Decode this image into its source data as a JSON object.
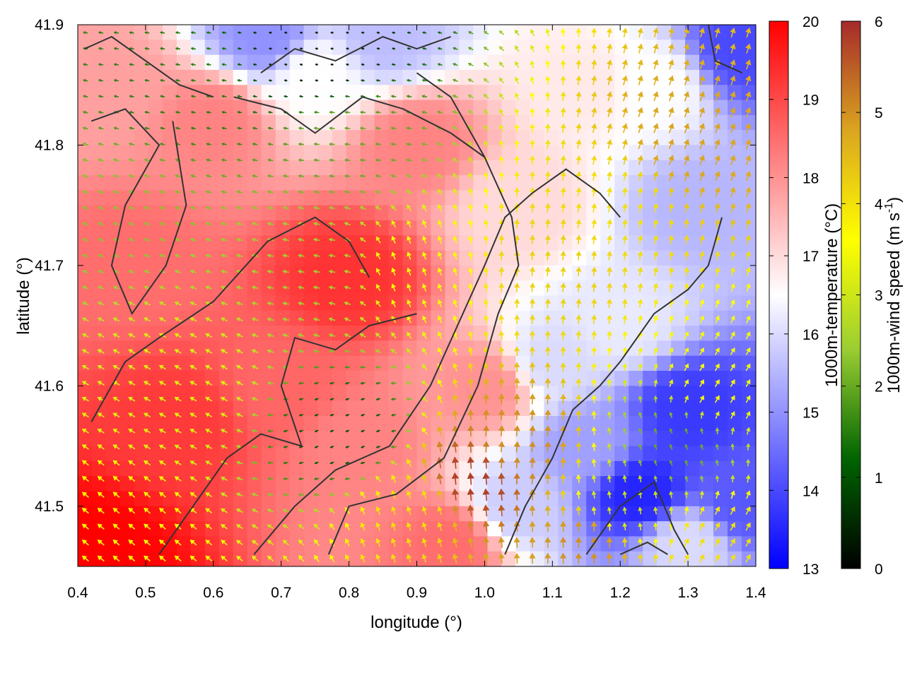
{
  "chart_data": {
    "type": "heatmap",
    "overlay": "wind-vectors-and-contours",
    "xlabel": "longitude (°)",
    "ylabel": "latitude (°)",
    "xlim": [
      0.4,
      1.4
    ],
    "ylim": [
      41.45,
      41.9
    ],
    "x_ticks": [
      "0.4",
      "0.5",
      "0.6",
      "0.7",
      "0.8",
      "0.9",
      "1.0",
      "1.1",
      "1.2",
      "1.3",
      "1.4"
    ],
    "y_ticks": [
      "41.5",
      "41.6",
      "41.7",
      "41.8",
      "41.9"
    ],
    "grid": false,
    "temperature": {
      "label": "1000m-temperature (°C)",
      "range": [
        13,
        20
      ],
      "ticks": [
        "13",
        "14",
        "15",
        "16",
        "17",
        "18",
        "19",
        "20"
      ],
      "colors": [
        "#0000ff",
        "#ffffff",
        "#ff0000"
      ]
    },
    "wind_speed": {
      "label_main": "1000m-wind speed (m s",
      "label_sup": "-1",
      "label_end": ")",
      "range": [
        0,
        6
      ],
      "ticks": [
        "0",
        "1",
        "2",
        "3",
        "4",
        "5",
        "6"
      ],
      "colors": [
        "#000000",
        "#006400",
        "#9acd32",
        "#ffff00",
        "#daa520",
        "#a52a2a"
      ]
    },
    "temperature_field": [
      {
        "lon": 0.42,
        "lat": 41.46,
        "t": 20.0
      },
      {
        "lon": 0.55,
        "lat": 41.57,
        "t": 19.2
      },
      {
        "lon": 0.48,
        "lat": 41.7,
        "t": 18.5
      },
      {
        "lon": 0.45,
        "lat": 41.85,
        "t": 17.8
      },
      {
        "lon": 0.6,
        "lat": 41.82,
        "t": 18.2
      },
      {
        "lon": 0.68,
        "lat": 41.89,
        "t": 15.0
      },
      {
        "lon": 0.85,
        "lat": 41.89,
        "t": 15.6
      },
      {
        "lon": 0.75,
        "lat": 41.86,
        "t": 16.5
      },
      {
        "lon": 0.8,
        "lat": 41.69,
        "t": 19.3
      },
      {
        "lon": 0.7,
        "lat": 41.6,
        "t": 18.6
      },
      {
        "lon": 0.82,
        "lat": 41.55,
        "t": 18.2
      },
      {
        "lon": 0.9,
        "lat": 41.8,
        "t": 18.2
      },
      {
        "lon": 1.0,
        "lat": 41.6,
        "t": 18.0
      },
      {
        "lon": 0.95,
        "lat": 41.47,
        "t": 18.5
      },
      {
        "lon": 1.05,
        "lat": 41.75,
        "t": 17.0
      },
      {
        "lon": 1.1,
        "lat": 41.62,
        "t": 16.0
      },
      {
        "lon": 1.15,
        "lat": 41.85,
        "t": 16.8
      },
      {
        "lon": 1.25,
        "lat": 41.85,
        "t": 16.5
      },
      {
        "lon": 1.32,
        "lat": 41.75,
        "t": 15.5
      },
      {
        "lon": 1.38,
        "lat": 41.88,
        "t": 14.0
      },
      {
        "lon": 1.3,
        "lat": 41.58,
        "t": 13.8
      },
      {
        "lon": 1.23,
        "lat": 41.51,
        "t": 13.5
      },
      {
        "lon": 1.38,
        "lat": 41.5,
        "t": 14.2
      },
      {
        "lon": 1.15,
        "lat": 41.55,
        "t": 15.2
      },
      {
        "lon": 1.2,
        "lat": 41.65,
        "t": 16.2
      },
      {
        "lon": 1.05,
        "lat": 41.5,
        "t": 15.8
      },
      {
        "lon": 1.3,
        "lat": 41.47,
        "t": 16.0
      }
    ],
    "wind_field": [
      {
        "lon": 0.45,
        "lat": 41.47,
        "speed": 3.6,
        "dir_deg": 140
      },
      {
        "lon": 0.55,
        "lat": 41.6,
        "speed": 3.2,
        "dir_deg": 150
      },
      {
        "lon": 0.45,
        "lat": 41.75,
        "speed": 2.3,
        "dir_deg": 165
      },
      {
        "lon": 0.55,
        "lat": 41.85,
        "speed": 1.5,
        "dir_deg": 170
      },
      {
        "lon": 0.75,
        "lat": 41.88,
        "speed": 0.4,
        "dir_deg": 170
      },
      {
        "lon": 0.8,
        "lat": 41.8,
        "speed": 2.0,
        "dir_deg": 175
      },
      {
        "lon": 0.75,
        "lat": 41.7,
        "speed": 2.5,
        "dir_deg": 170
      },
      {
        "lon": 0.8,
        "lat": 41.56,
        "speed": 1.0,
        "dir_deg": 200
      },
      {
        "lon": 0.9,
        "lat": 41.7,
        "speed": 3.5,
        "dir_deg": 110
      },
      {
        "lon": 0.9,
        "lat": 41.5,
        "speed": 4.0,
        "dir_deg": 110
      },
      {
        "lon": 0.98,
        "lat": 41.52,
        "speed": 5.8,
        "dir_deg": 95
      },
      {
        "lon": 1.05,
        "lat": 41.55,
        "speed": 5.0,
        "dir_deg": 85
      },
      {
        "lon": 1.1,
        "lat": 41.7,
        "speed": 4.2,
        "dir_deg": 85
      },
      {
        "lon": 1.2,
        "lat": 41.75,
        "speed": 4.0,
        "dir_deg": 80
      },
      {
        "lon": 1.3,
        "lat": 41.8,
        "speed": 4.8,
        "dir_deg": 70
      },
      {
        "lon": 1.35,
        "lat": 41.6,
        "speed": 3.5,
        "dir_deg": 60
      },
      {
        "lon": 1.28,
        "lat": 41.55,
        "speed": 2.0,
        "dir_deg": 110
      },
      {
        "lon": 1.2,
        "lat": 41.5,
        "speed": 3.0,
        "dir_deg": 100
      },
      {
        "lon": 1.15,
        "lat": 41.47,
        "speed": 5.0,
        "dir_deg": 90
      },
      {
        "lon": 1.35,
        "lat": 41.47,
        "speed": 4.0,
        "dir_deg": 60
      }
    ],
    "contours": [
      [
        [
          0.41,
          41.88
        ],
        [
          0.45,
          41.89
        ],
        [
          0.5,
          41.87
        ],
        [
          0.55,
          41.85
        ],
        [
          0.6,
          41.84
        ]
      ],
      [
        [
          0.42,
          41.82
        ],
        [
          0.47,
          41.83
        ],
        [
          0.52,
          41.8
        ],
        [
          0.47,
          41.75
        ],
        [
          0.45,
          41.7
        ],
        [
          0.48,
          41.66
        ],
        [
          0.53,
          41.7
        ],
        [
          0.56,
          41.75
        ],
        [
          0.54,
          41.82
        ]
      ],
      [
        [
          0.42,
          41.57
        ],
        [
          0.47,
          41.62
        ],
        [
          0.52,
          41.64
        ],
        [
          0.6,
          41.67
        ],
        [
          0.68,
          41.72
        ],
        [
          0.75,
          41.74
        ],
        [
          0.8,
          41.72
        ],
        [
          0.83,
          41.69
        ]
      ],
      [
        [
          0.52,
          41.46
        ],
        [
          0.57,
          41.5
        ],
        [
          0.62,
          41.54
        ],
        [
          0.67,
          41.56
        ],
        [
          0.73,
          41.55
        ],
        [
          0.7,
          41.6
        ],
        [
          0.72,
          41.64
        ],
        [
          0.78,
          41.63
        ],
        [
          0.83,
          41.65
        ],
        [
          0.9,
          41.66
        ]
      ],
      [
        [
          0.63,
          41.84
        ],
        [
          0.7,
          41.83
        ],
        [
          0.75,
          41.81
        ],
        [
          0.82,
          41.84
        ],
        [
          0.88,
          41.83
        ],
        [
          0.95,
          41.81
        ],
        [
          1.0,
          41.79
        ]
      ],
      [
        [
          0.66,
          41.46
        ],
        [
          0.72,
          41.5
        ],
        [
          0.78,
          41.53
        ],
        [
          0.86,
          41.55
        ],
        [
          0.92,
          41.6
        ],
        [
          0.96,
          41.65
        ],
        [
          1.0,
          41.7
        ],
        [
          1.03,
          41.74
        ],
        [
          1.07,
          41.76
        ],
        [
          1.12,
          41.78
        ],
        [
          1.17,
          41.76
        ],
        [
          1.2,
          41.74
        ]
      ],
      [
        [
          0.77,
          41.46
        ],
        [
          0.8,
          41.5
        ],
        [
          0.87,
          41.51
        ],
        [
          0.94,
          41.54
        ],
        [
          0.99,
          41.6
        ],
        [
          1.02,
          41.66
        ],
        [
          1.05,
          41.7
        ],
        [
          1.04,
          41.74
        ],
        [
          1.0,
          41.79
        ],
        [
          0.95,
          41.84
        ],
        [
          0.9,
          41.86
        ]
      ],
      [
        [
          0.67,
          41.86
        ],
        [
          0.72,
          41.88
        ],
        [
          0.78,
          41.87
        ],
        [
          0.85,
          41.89
        ],
        [
          0.9,
          41.88
        ],
        [
          0.95,
          41.89
        ]
      ],
      [
        [
          1.03,
          41.46
        ],
        [
          1.06,
          41.5
        ],
        [
          1.1,
          41.54
        ],
        [
          1.13,
          41.58
        ],
        [
          1.17,
          41.6
        ],
        [
          1.2,
          41.62
        ],
        [
          1.25,
          41.66
        ],
        [
          1.3,
          41.68
        ],
        [
          1.33,
          41.7
        ],
        [
          1.35,
          41.74
        ]
      ],
      [
        [
          1.15,
          41.46
        ],
        [
          1.2,
          41.5
        ],
        [
          1.25,
          41.52
        ],
        [
          1.28,
          41.48
        ],
        [
          1.3,
          41.46
        ]
      ],
      [
        [
          1.33,
          41.9
        ],
        [
          1.34,
          41.87
        ],
        [
          1.38,
          41.86
        ]
      ],
      [
        [
          1.2,
          41.46
        ],
        [
          1.24,
          41.47
        ],
        [
          1.27,
          41.46
        ]
      ]
    ]
  }
}
